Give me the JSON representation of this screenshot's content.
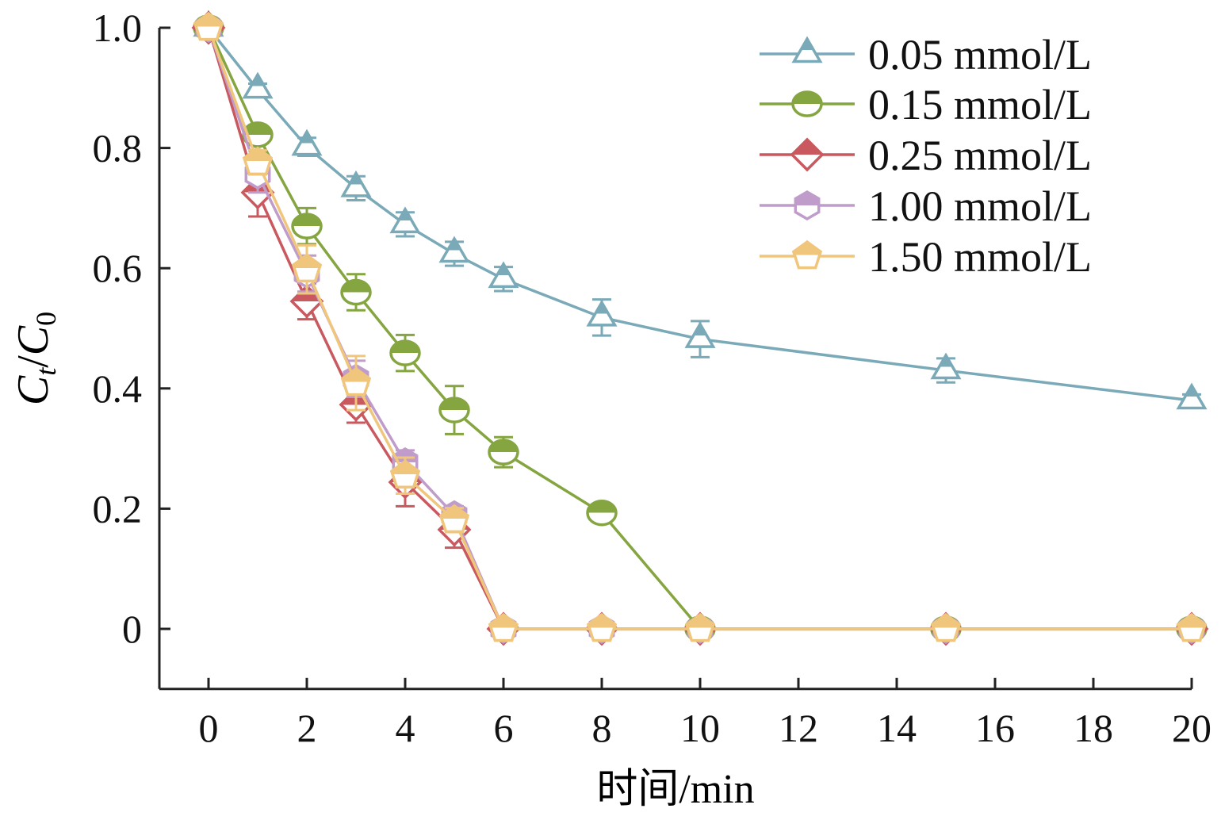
{
  "chart_data": {
    "type": "line",
    "xlabel": "时间/min",
    "ylabel": {
      "main": "C",
      "sub1": "t",
      "slash": "/",
      "main2": "C",
      "sub2": "0"
    },
    "xlim": [
      -1,
      20
    ],
    "ylim": [
      -0.1,
      1.0
    ],
    "xticks": [
      0,
      2,
      4,
      6,
      8,
      10,
      12,
      14,
      16,
      18,
      20
    ],
    "xtick_labels": [
      "0",
      "2",
      "4",
      "6",
      "8",
      "10",
      "12",
      "14",
      "16",
      "18",
      "20"
    ],
    "yticks": [
      0,
      0.2,
      0.4,
      0.6,
      0.8,
      1.0
    ],
    "ytick_labels": [
      "0",
      "0.2",
      "0.4",
      "0.6",
      "0.8",
      "1.0"
    ],
    "grid": false,
    "legend_position": "top-right",
    "series": [
      {
        "name": "0.05 mmol/L",
        "color": "#7aa9b8",
        "marker": "triangle",
        "x": [
          0,
          1,
          2,
          3,
          4,
          5,
          6,
          8,
          10,
          15,
          20
        ],
        "y": [
          1.0,
          0.897,
          0.802,
          0.733,
          0.673,
          0.624,
          0.582,
          0.518,
          0.482,
          0.43,
          0.38
        ],
        "err": [
          0.005,
          0.01,
          0.015,
          0.02,
          0.02,
          0.02,
          0.02,
          0.03,
          0.03,
          0.02,
          0.01
        ]
      },
      {
        "name": "0.15 mmol/L",
        "color": "#84a540",
        "marker": "circle",
        "x": [
          0,
          1,
          2,
          3,
          4,
          5,
          6,
          8,
          10,
          15,
          20
        ],
        "y": [
          1.0,
          0.822,
          0.67,
          0.56,
          0.459,
          0.364,
          0.294,
          0.193,
          0,
          0,
          0
        ],
        "err": [
          0.005,
          0.01,
          0.03,
          0.03,
          0.03,
          0.04,
          0.025,
          0.01,
          0.005,
          0.005,
          0.005
        ]
      },
      {
        "name": "0.25 mmol/L",
        "color": "#c9585f",
        "marker": "diamond",
        "x": [
          0,
          1,
          2,
          3,
          4,
          5,
          6,
          8,
          10,
          15,
          20
        ],
        "y": [
          1.0,
          0.726,
          0.545,
          0.373,
          0.244,
          0.165,
          0,
          0,
          0,
          0,
          0
        ],
        "err": [
          0.005,
          0.04,
          0.03,
          0.03,
          0.04,
          0.03,
          0.005,
          0.005,
          0.005,
          0.005,
          0.005
        ]
      },
      {
        "name": "1.00 mmol/L",
        "color": "#c09ccb",
        "marker": "hexagon",
        "x": [
          0,
          1,
          2,
          3,
          4,
          5,
          6,
          8,
          10,
          15,
          20
        ],
        "y": [
          1.0,
          0.756,
          0.591,
          0.416,
          0.277,
          0.189,
          0,
          0,
          0,
          0,
          0
        ],
        "err": [
          0.005,
          0.03,
          0.03,
          0.03,
          0.02,
          0.015,
          0.005,
          0.005,
          0.005,
          0.005,
          0.005
        ]
      },
      {
        "name": "1.50 mmol/L",
        "color": "#f0c67c",
        "marker": "pentagon",
        "x": [
          0,
          1,
          2,
          3,
          4,
          5,
          6,
          8,
          10,
          15,
          20
        ],
        "y": [
          1.0,
          0.776,
          0.598,
          0.409,
          0.255,
          0.181,
          0,
          0,
          0,
          0,
          0
        ],
        "err": [
          0.005,
          0.02,
          0.04,
          0.045,
          0.03,
          0.02,
          0.005,
          0.005,
          0.005,
          0.005,
          0.005
        ]
      }
    ]
  }
}
